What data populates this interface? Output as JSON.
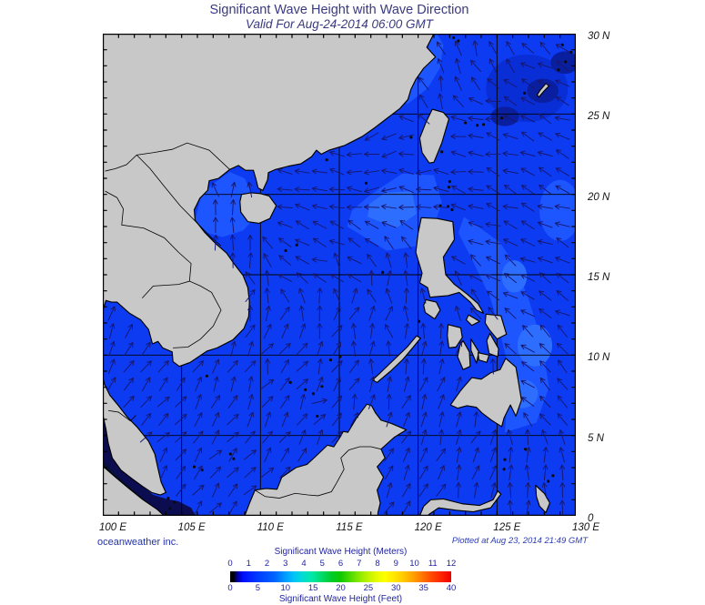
{
  "header": {
    "title": "Significant Wave Height with Wave Direction",
    "subtitle": "Valid For Aug-24-2014 06:00 GMT"
  },
  "map": {
    "lat_labels": [
      "30 N",
      "25 N",
      "20 N",
      "15 N",
      "10 N",
      "5 N",
      "0"
    ],
    "lon_labels": [
      "100 E",
      "105 E",
      "110 E",
      "115 E",
      "120 E",
      "125 E",
      "130 E"
    ],
    "lon_range": [
      100,
      130
    ],
    "lat_range": [
      0,
      30
    ],
    "grid_interval_deg": 5,
    "tick_interval_deg": 1
  },
  "footer": {
    "credit": "oceanweather inc.",
    "plotted": "Plotted at Aug 23, 2014 21:49 GMT"
  },
  "legend": {
    "meters_title": "Significant Wave Height (Meters)",
    "feet_title": "Significant Wave Height (Feet)",
    "meters_ticks": [
      "0",
      "1",
      "2",
      "3",
      "4",
      "5",
      "6",
      "7",
      "8",
      "9",
      "10",
      "11",
      "12"
    ],
    "feet_ticks": [
      "0",
      "5",
      "10",
      "15",
      "20",
      "25",
      "30",
      "35",
      "40"
    ],
    "colorbar_stops": [
      [
        0,
        "#000000"
      ],
      [
        1.5,
        "#000000"
      ],
      [
        2.5,
        "#000060"
      ],
      [
        4,
        "#0000c0"
      ],
      [
        6,
        "#0010ff"
      ],
      [
        12,
        "#0038ff"
      ],
      [
        20,
        "#0064ff"
      ],
      [
        25,
        "#009cff"
      ],
      [
        29,
        "#00c4f8"
      ],
      [
        33,
        "#00ddd0"
      ],
      [
        37,
        "#00e8a8"
      ],
      [
        41,
        "#00dc70"
      ],
      [
        46,
        "#00cc28"
      ],
      [
        50,
        "#10c800"
      ],
      [
        54,
        "#48d800"
      ],
      [
        58,
        "#84e800"
      ],
      [
        62,
        "#baf200"
      ],
      [
        66,
        "#e4fa00"
      ],
      [
        70,
        "#ffff00"
      ],
      [
        74,
        "#ffe800"
      ],
      [
        78,
        "#ffcc00"
      ],
      [
        82,
        "#ffa800"
      ],
      [
        86,
        "#ff8000"
      ],
      [
        90,
        "#ff5400"
      ],
      [
        95,
        "#ff2800"
      ],
      [
        100,
        "#ee0000"
      ]
    ]
  },
  "colors": {
    "title_text": "#3a3a80",
    "legend_text": "#22249f",
    "axis_text": "#151515",
    "credit_text": "#2233aa",
    "plotted_text": "#2c3cb4",
    "ocean_base": "#0d3bf2",
    "ocean_light1": "#1d55ff",
    "ocean_light2": "#2e6eff",
    "ocean_light3": "#418cff",
    "ocean_light4": "#6ab0ff",
    "ocean_dark_ring": "#0a2ed6",
    "ocean_dark_blob": "#0a1f9f",
    "ocean_dark_strait": "#0c0c50",
    "ocean_darkest": "#051233",
    "land": "#c8c8c8",
    "coast": "#000000",
    "grid": "#000000",
    "arrow": "#17176e",
    "frame": "#000000"
  },
  "wave_field": {
    "arrows_point_toward_deg_ccw_from_east": true,
    "control_points": [
      [
        100.3,
        5.5,
        50
      ],
      [
        101.5,
        4.5,
        40
      ],
      [
        101.0,
        8.5,
        55
      ],
      [
        102.5,
        12.0,
        60
      ],
      [
        105.0,
        7.0,
        50
      ],
      [
        106.5,
        10.5,
        60
      ],
      [
        108.0,
        4.0,
        45
      ],
      [
        111.0,
        2.0,
        35
      ],
      [
        114.0,
        1.5,
        45
      ],
      [
        117.0,
        2.5,
        55
      ],
      [
        120.5,
        3.0,
        60
      ],
      [
        124.0,
        4.5,
        60
      ],
      [
        128.0,
        3.0,
        95
      ],
      [
        110.0,
        7.0,
        60
      ],
      [
        113.0,
        6.5,
        40
      ],
      [
        116.0,
        7.0,
        55
      ],
      [
        119.5,
        7.5,
        55
      ],
      [
        123.5,
        9.5,
        55
      ],
      [
        110.5,
        12.0,
        75
      ],
      [
        113.5,
        12.5,
        45
      ],
      [
        116.5,
        12.5,
        70
      ],
      [
        119.5,
        14.5,
        80
      ],
      [
        109.5,
        15.5,
        90
      ],
      [
        113.0,
        15.0,
        190
      ],
      [
        116.0,
        15.5,
        150
      ],
      [
        108.5,
        19.5,
        85
      ],
      [
        111.0,
        19.5,
        195
      ],
      [
        114.0,
        19.5,
        190
      ],
      [
        117.5,
        20.0,
        185
      ],
      [
        120.3,
        21.0,
        185
      ],
      [
        118.0,
        23.5,
        210
      ],
      [
        121.5,
        26.5,
        95
      ],
      [
        123.0,
        29.0,
        95
      ],
      [
        125.5,
        28.5,
        120
      ],
      [
        127.5,
        27.5,
        150
      ],
      [
        129.5,
        26.0,
        165
      ],
      [
        124.5,
        25.0,
        175
      ],
      [
        123.0,
        22.5,
        170
      ],
      [
        126.0,
        22.0,
        170
      ],
      [
        129.0,
        21.0,
        165
      ],
      [
        124.0,
        18.0,
        165
      ],
      [
        127.5,
        17.0,
        160
      ],
      [
        129.5,
        14.0,
        155
      ],
      [
        126.0,
        13.0,
        155
      ],
      [
        128.0,
        10.0,
        150
      ],
      [
        126.8,
        7.5,
        140
      ],
      [
        129.0,
        7.0,
        145
      ]
    ]
  }
}
